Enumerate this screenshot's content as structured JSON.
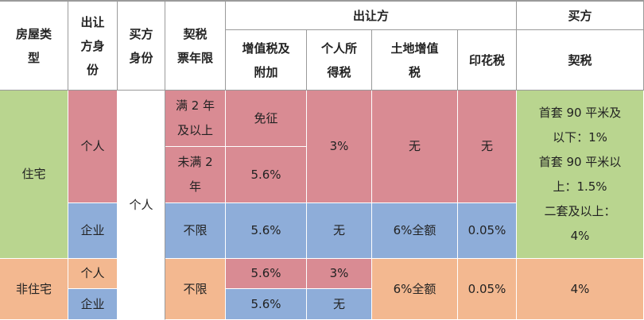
{
  "headers": {
    "house_type": [
      "房屋类",
      "型"
    ],
    "seller_identity": [
      "出让",
      "方身",
      "份"
    ],
    "buyer_identity": [
      "买方",
      "身份"
    ],
    "deed_tax_years": [
      "契税",
      "票年限"
    ],
    "seller_group": "出让方",
    "buyer_group": "买方",
    "vat": [
      "增值税及",
      "附加"
    ],
    "personal_income_tax": [
      "个人所",
      "得税"
    ],
    "land_vat": [
      "土地增值",
      "税"
    ],
    "stamp_tax": "印花税",
    "deed_tax": "契税"
  },
  "rows": {
    "residential": "住宅",
    "non_residential": "非住宅",
    "individual": "个人",
    "enterprise": "企业",
    "buyer_individual": "个人",
    "over2": [
      "满 2 年",
      "及以上"
    ],
    "under2": [
      "未满 2",
      "年"
    ],
    "unlimited": "不限",
    "exempt": "免征",
    "vat_rate": "5.6%",
    "pit_rate": "3%",
    "none": "无",
    "land_full": "6%全额",
    "stamp_rate": "0.05%",
    "deed_notes": [
      "首套 90 平米及",
      "以下：1%",
      "首套 90 平米以",
      "上：1.5%",
      "二套及以上：",
      "4%"
    ],
    "deed_non_res": "4%"
  }
}
